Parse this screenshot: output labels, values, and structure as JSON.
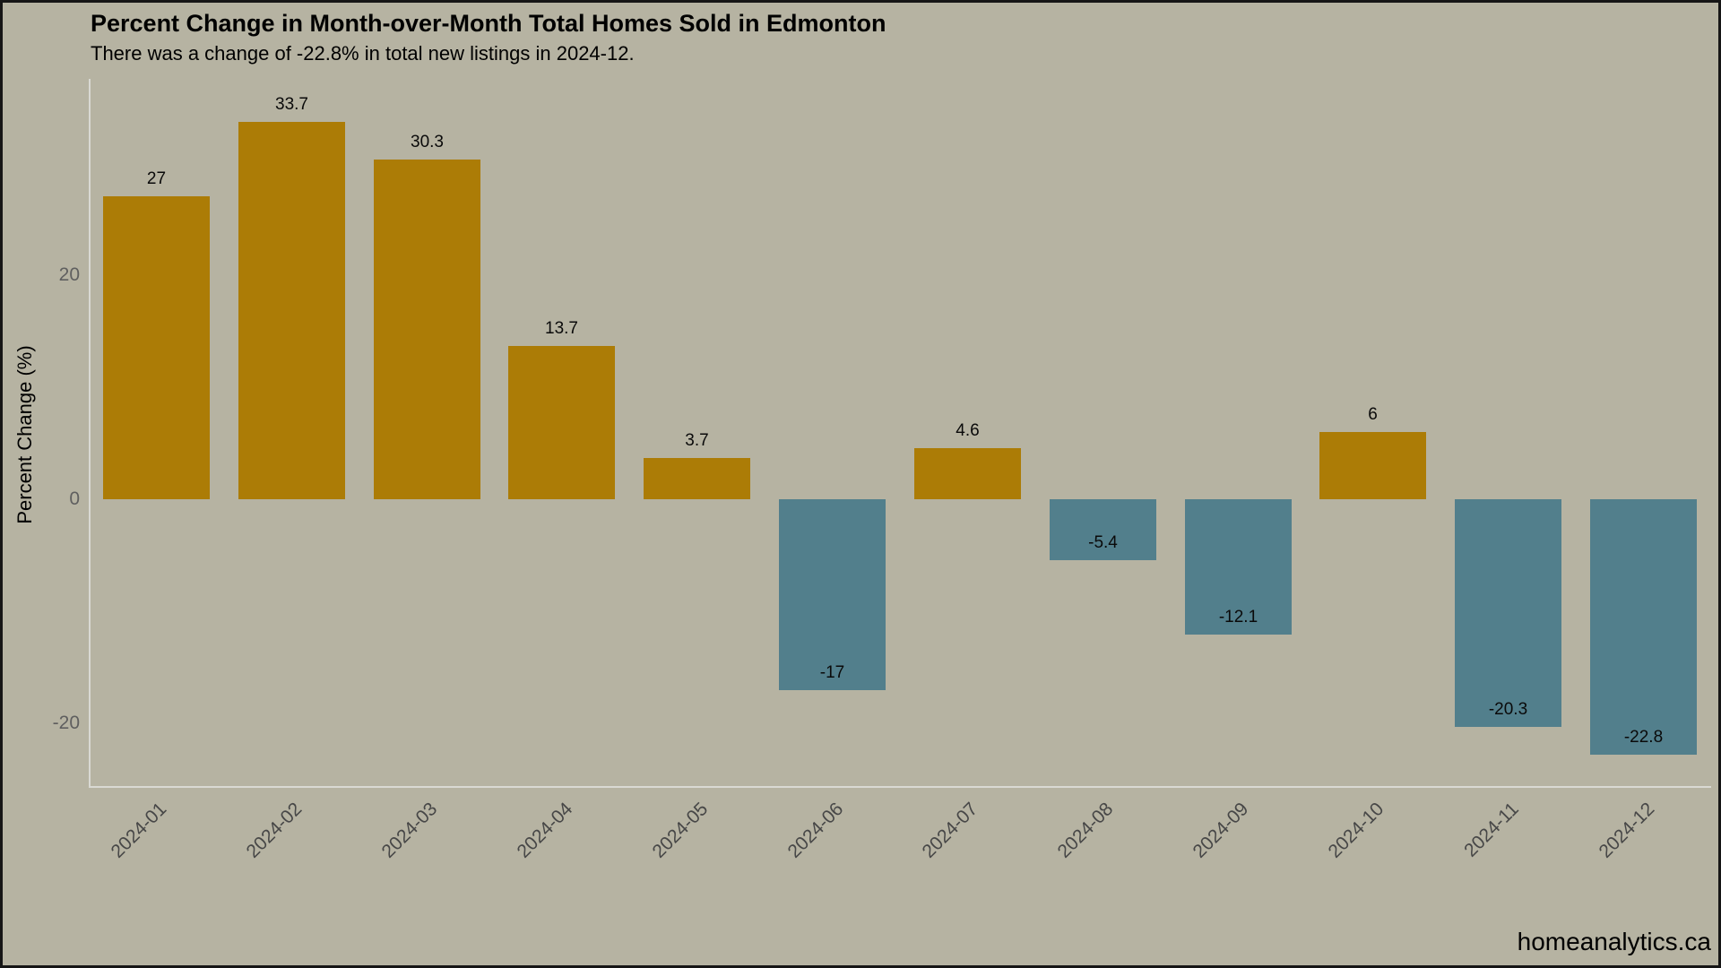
{
  "header": {
    "title": "Percent Change in Month-over-Month Total Homes Sold in Edmonton",
    "subtitle": "There was a change of -22.8% in total new listings in 2024-12."
  },
  "watermark": "homeanalytics.ca",
  "colors": {
    "background": "#b6b3a2",
    "positive_bar": "#ac7c06",
    "negative_bar": "#527f8c",
    "axis_line": "#d9d9d3",
    "ytick_text": "#5f5f5f",
    "xtick_text": "#474747",
    "value_label_text": "#0a0a0a"
  },
  "chart_data": {
    "type": "bar",
    "title": "Percent Change in Month-over-Month Total Homes Sold in Edmonton",
    "subtitle": "There was a change of -22.8% in total new listings in 2024-12.",
    "xlabel": "",
    "ylabel": "Percent Change (%)",
    "categories": [
      "2024-01",
      "2024-02",
      "2024-03",
      "2024-04",
      "2024-05",
      "2024-06",
      "2024-07",
      "2024-08",
      "2024-09",
      "2024-10",
      "2024-11",
      "2024-12"
    ],
    "values": [
      27,
      33.7,
      30.3,
      13.7,
      3.7,
      -17,
      4.6,
      -5.4,
      -12.1,
      6,
      -20.3,
      -22.8
    ],
    "value_labels": [
      "27",
      "33.7",
      "30.3",
      "13.7",
      "3.7",
      "-17",
      "4.6",
      "-5.4",
      "-12.1",
      "6",
      "-20.3",
      "-22.8"
    ],
    "ylim": [
      -26,
      37.5
    ],
    "yticks": [
      20,
      0,
      -20
    ],
    "ytick_labels": [
      "20",
      "0",
      "-20"
    ],
    "grid": false,
    "legend": "none",
    "bar_color_rule": "positive values gold, negative values teal",
    "label_placement": "positive labels above bar, negative labels inside bar near bottom"
  }
}
